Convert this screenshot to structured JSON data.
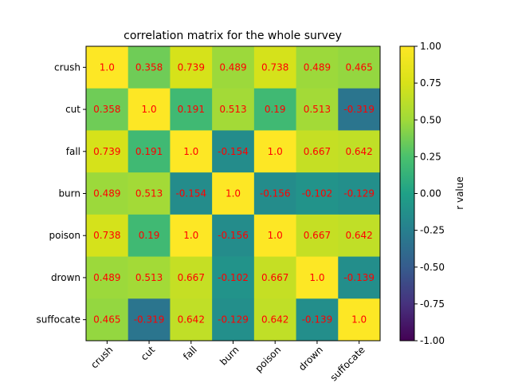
{
  "chart_data": {
    "type": "heatmap",
    "title": "correlation matrix for the whole survey",
    "x_categories": [
      "crush",
      "cut",
      "fall",
      "burn",
      "poison",
      "drown",
      "suffocate"
    ],
    "y_categories": [
      "crush",
      "cut",
      "fall",
      "burn",
      "poison",
      "drown",
      "suffocate"
    ],
    "values": [
      [
        1.0,
        0.358,
        0.739,
        0.489,
        0.738,
        0.489,
        0.465
      ],
      [
        0.358,
        1.0,
        0.191,
        0.513,
        0.19,
        0.513,
        -0.319
      ],
      [
        0.739,
        0.191,
        1.0,
        -0.154,
        1.0,
        0.667,
        0.642
      ],
      [
        0.489,
        0.513,
        -0.154,
        1.0,
        -0.156,
        -0.102,
        -0.129
      ],
      [
        0.738,
        0.19,
        1.0,
        -0.156,
        1.0,
        0.667,
        0.642
      ],
      [
        0.489,
        0.513,
        0.667,
        -0.102,
        0.667,
        1.0,
        -0.139
      ],
      [
        0.465,
        -0.319,
        0.642,
        -0.129,
        0.642,
        -0.139,
        1.0
      ]
    ],
    "cell_labels": [
      [
        "1.0",
        "0.358",
        "0.739",
        "0.489",
        "0.738",
        "0.489",
        "0.465"
      ],
      [
        "0.358",
        "1.0",
        "0.191",
        "0.513",
        "0.19",
        "0.513",
        "-0.319"
      ],
      [
        "0.739",
        "0.191",
        "1.0",
        "-0.154",
        "1.0",
        "0.667",
        "0.642"
      ],
      [
        "0.489",
        "0.513",
        "-0.154",
        "1.0",
        "-0.156",
        "-0.102",
        "-0.129"
      ],
      [
        "0.738",
        "0.19",
        "1.0",
        "-0.156",
        "1.0",
        "0.667",
        "0.642"
      ],
      [
        "0.489",
        "0.513",
        "0.667",
        "-0.102",
        "0.667",
        "1.0",
        "-0.139"
      ],
      [
        "0.465",
        "-0.319",
        "0.642",
        "-0.129",
        "0.642",
        "-0.139",
        "1.0"
      ]
    ],
    "colormap": "viridis",
    "vmin": -1.0,
    "vmax": 1.0,
    "colorbar": {
      "label": "r value",
      "ticks": [
        "1.00",
        "0.75",
        "0.50",
        "0.25",
        "0.00",
        "-0.25",
        "-0.50",
        "-0.75",
        "-1.00"
      ]
    },
    "label_color": "#ff0000"
  }
}
